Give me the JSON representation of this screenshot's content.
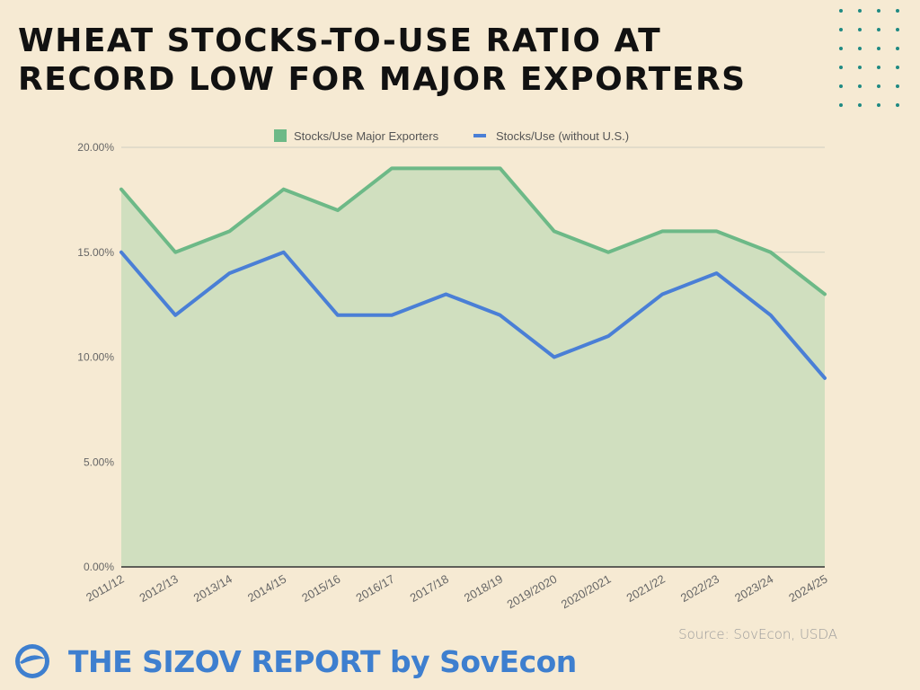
{
  "title": "WHEAT STOCKS-TO-USE RATIO AT RECORD LOW FOR MAJOR EXPORTERS",
  "source": "Source: SovEcon, USDA",
  "brand": {
    "text": "THE SIZOV REPORT by SovEcon",
    "icon": "sovecon-logo-icon",
    "color": "#3e7fcf"
  },
  "colors": {
    "background": "#f6ead3",
    "area_fill": "#d0dfbf",
    "green_line": "#6db987",
    "blue_line": "#4a7fd6",
    "accent_dots": "#1f8a83"
  },
  "chart_data": {
    "type": "area",
    "title": "WHEAT STOCKS-TO-USE RATIO AT RECORD LOW FOR MAJOR EXPORTERS",
    "xlabel": "",
    "ylabel": "",
    "categories": [
      "2011/12",
      "2012/13",
      "2013/14",
      "2014/15",
      "2015/16",
      "2016/17",
      "2017/18",
      "2018/19",
      "2019/2020",
      "2020/2021",
      "2021/22",
      "2022/23",
      "2023/24",
      "2024/25"
    ],
    "series": [
      {
        "name": "Stocks/Use Major Exporters",
        "style": "area",
        "color": "#6db987",
        "values": [
          18,
          15,
          16,
          18,
          17,
          19,
          19,
          19,
          16,
          15,
          16,
          16,
          15,
          13
        ]
      },
      {
        "name": "Stocks/Use (without U.S.)",
        "style": "line",
        "color": "#4a7fd6",
        "values": [
          15,
          12,
          14,
          15,
          12,
          12,
          13,
          12,
          10,
          11,
          13,
          14,
          12,
          9
        ]
      }
    ],
    "ylim": [
      0,
      20
    ],
    "yticks": [
      0,
      5,
      10,
      15,
      20
    ],
    "ytick_labels": [
      "0.00%",
      "5.00%",
      "10.00%",
      "15.00%",
      "20.00%"
    ],
    "grid": true,
    "legend_position": "top-center"
  }
}
